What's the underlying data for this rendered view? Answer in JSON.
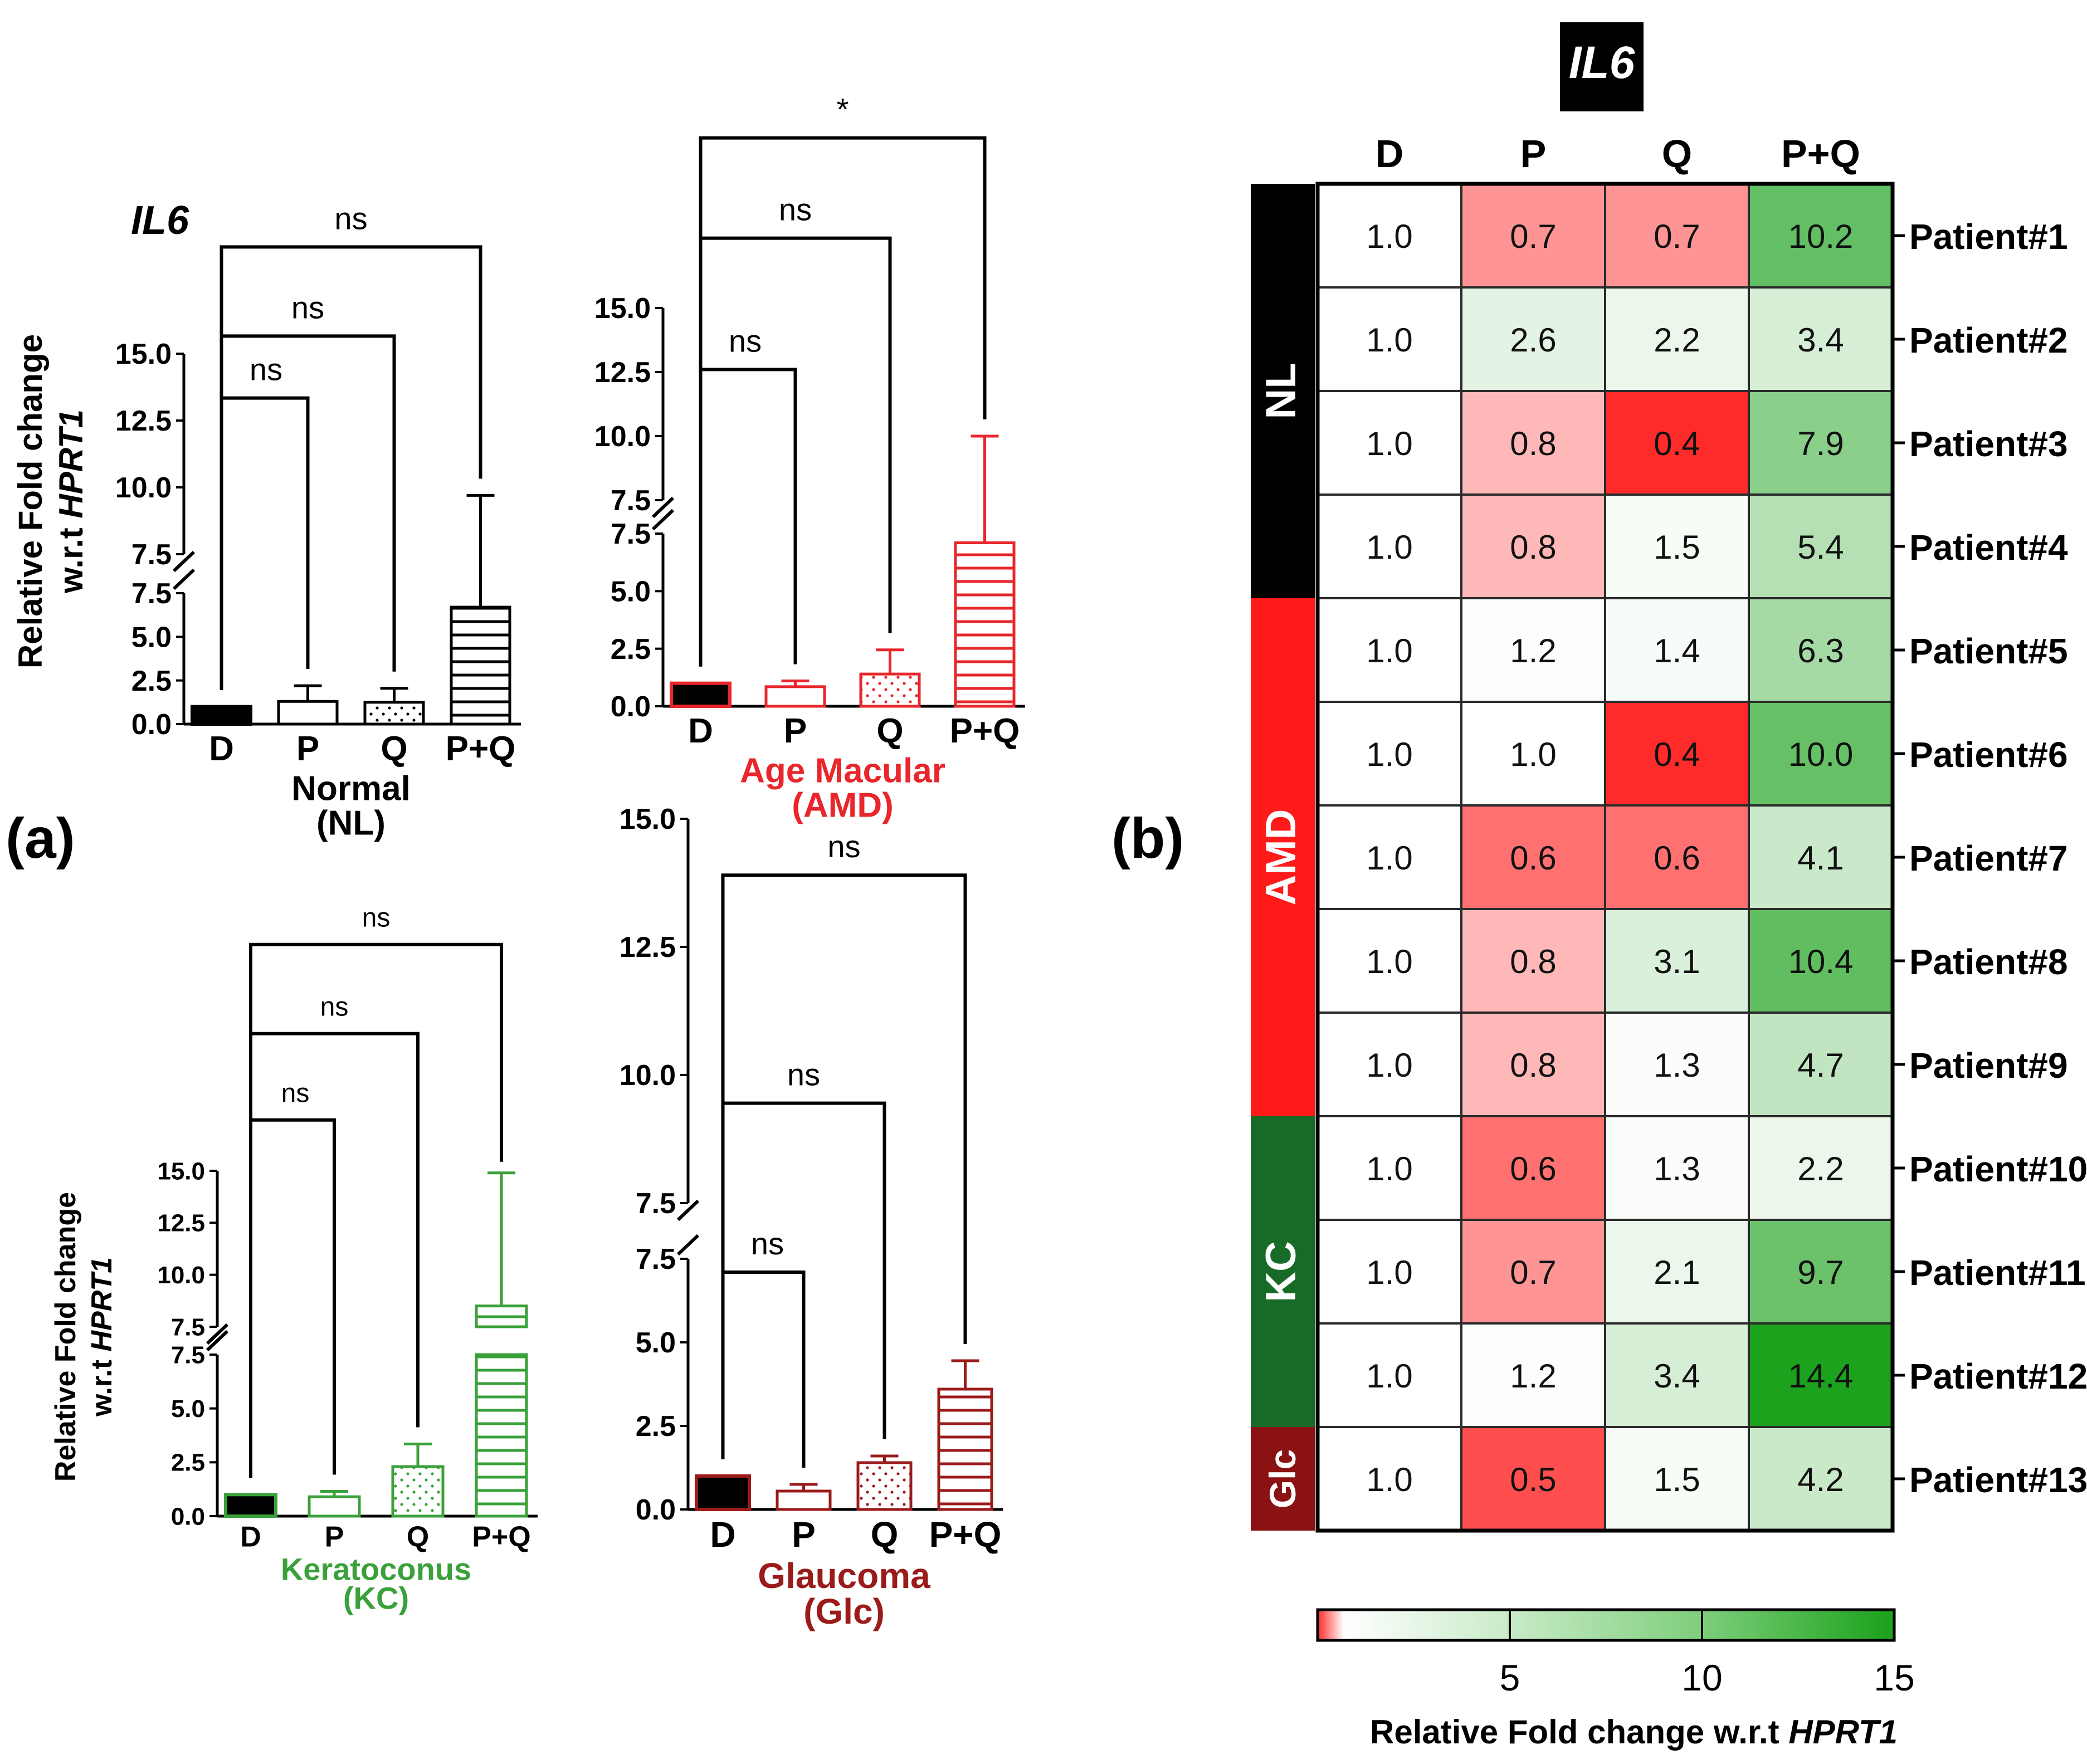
{
  "panel_labels": {
    "a": "(a)",
    "b": "(b)"
  },
  "axis_ylabel_line1": "Relative Fold change",
  "axis_ylabel_line2_prefix": "w.r.t ",
  "axis_ylabel_line2_gene": "HPRT1",
  "gene_label": "IL6",
  "chart_data": [
    {
      "type": "bar",
      "id": "NL",
      "title_line1": "Normal",
      "title_line2": "(NL)",
      "color": "#000000",
      "categories": [
        "D",
        "P",
        "Q",
        "P+Q"
      ],
      "values": [
        1.0,
        1.3,
        1.25,
        6.7
      ],
      "errors": [
        0,
        0.9,
        0.8,
        3.0
      ],
      "fills": [
        "solid",
        "none",
        "dots",
        "hlines"
      ],
      "y_ticks_lower": [
        "0.0",
        "2.5",
        "5.0",
        "7.5"
      ],
      "y_ticks_upper": [
        "7.5",
        "10.0",
        "12.5",
        "15.0"
      ],
      "ylim_lower": [
        0,
        7.5
      ],
      "ylim_upper": [
        7.5,
        15
      ],
      "comparisons": [
        {
          "from": "D",
          "to": "P",
          "label": "ns"
        },
        {
          "from": "D",
          "to": "Q",
          "label": "ns"
        },
        {
          "from": "D",
          "to": "P+Q",
          "label": "ns"
        }
      ]
    },
    {
      "type": "bar",
      "id": "AMD",
      "title_line1": "Age Macular",
      "title_line2": "(AMD)",
      "color": "#e8262b",
      "categories": [
        "D",
        "P",
        "Q",
        "P+Q"
      ],
      "values": [
        1.0,
        0.85,
        1.4,
        7.1
      ],
      "errors": [
        0,
        0.25,
        1.05,
        2.9
      ],
      "fills": [
        "solid",
        "none",
        "dots",
        "hlines"
      ],
      "y_ticks_lower": [
        "0.0",
        "2.5",
        "5.0",
        "7.5"
      ],
      "y_ticks_upper": [
        "7.5",
        "10.0",
        "12.5",
        "15.0"
      ],
      "ylim_lower": [
        0,
        7.5
      ],
      "ylim_upper": [
        7.5,
        15
      ],
      "comparisons": [
        {
          "from": "D",
          "to": "P",
          "label": "ns"
        },
        {
          "from": "D",
          "to": "Q",
          "label": "ns"
        },
        {
          "from": "D",
          "to": "P+Q",
          "label": "*"
        }
      ]
    },
    {
      "type": "bar",
      "id": "KC",
      "title_line1": "Keratoconus",
      "title_line2": "(KC)",
      "color": "#3aa13a",
      "categories": [
        "D",
        "P",
        "Q",
        "P+Q"
      ],
      "values": [
        1.0,
        0.9,
        2.3,
        8.5
      ],
      "errors": [
        0,
        0.25,
        1.05,
        6.4
      ],
      "fills": [
        "solid",
        "none",
        "dots",
        "hlines"
      ],
      "y_ticks_lower": [
        "0.0",
        "2.5",
        "5.0",
        "7.5"
      ],
      "y_ticks_upper": [
        "7.5",
        "10.0",
        "12.5",
        "15.0"
      ],
      "ylim_lower": [
        0,
        7.5
      ],
      "ylim_upper": [
        7.5,
        15
      ],
      "comparisons": [
        {
          "from": "D",
          "to": "P",
          "label": "ns"
        },
        {
          "from": "D",
          "to": "Q",
          "label": "ns"
        },
        {
          "from": "D",
          "to": "P+Q",
          "label": "ns"
        }
      ]
    },
    {
      "type": "bar",
      "id": "Glc",
      "title_line1": "Glaucoma",
      "title_line2": "(Glc)",
      "color": "#9b1b1b",
      "categories": [
        "D",
        "P",
        "Q",
        "P+Q"
      ],
      "values": [
        1.0,
        0.55,
        1.4,
        3.6
      ],
      "errors": [
        0,
        0.2,
        0.2,
        0.85
      ],
      "fills": [
        "solid",
        "none",
        "dots",
        "hlines"
      ],
      "y_ticks_lower": [
        "0.0",
        "2.5",
        "5.0",
        "7.5"
      ],
      "y_ticks_upper": [
        "7.5",
        "10.0",
        "12.5",
        "15.0"
      ],
      "ylim_lower": [
        0,
        7.5
      ],
      "ylim_upper": [
        7.5,
        15
      ],
      "comparisons": [
        {
          "from": "D",
          "to": "P",
          "label": "ns"
        },
        {
          "from": "D",
          "to": "Q",
          "label": "ns"
        },
        {
          "from": "D",
          "to": "P+Q",
          "label": "ns"
        }
      ]
    },
    {
      "type": "heatmap",
      "id": "heatmap",
      "title": "IL6",
      "columns": [
        "D",
        "P",
        "Q",
        "P+Q"
      ],
      "rows": [
        "Patient#1",
        "Patient#2",
        "Patient#3",
        "Patient#4",
        "Patient#5",
        "Patient#6",
        "Patient#7",
        "Patient#8",
        "Patient#9",
        "Patient#10",
        "Patient#11",
        "Patient#12",
        "Patient#13"
      ],
      "values": [
        [
          "1.0",
          "0.7",
          "0.7",
          "10.2"
        ],
        [
          "1.0",
          "2.6",
          "2.2",
          "3.4"
        ],
        [
          "1.0",
          "0.8",
          "0.4",
          "7.9"
        ],
        [
          "1.0",
          "0.8",
          "1.5",
          "5.4"
        ],
        [
          "1.0",
          "1.2",
          "1.4",
          "6.3"
        ],
        [
          "1.0",
          "1.0",
          "0.4",
          "10.0"
        ],
        [
          "1.0",
          "0.6",
          "0.6",
          "4.1"
        ],
        [
          "1.0",
          "0.8",
          "3.1",
          "10.4"
        ],
        [
          "1.0",
          "0.8",
          "1.3",
          "4.7"
        ],
        [
          "1.0",
          "0.6",
          "1.3",
          "2.2"
        ],
        [
          "1.0",
          "0.7",
          "2.1",
          "9.7"
        ],
        [
          "1.0",
          "1.2",
          "3.4",
          "14.4"
        ],
        [
          "1.0",
          "0.5",
          "1.5",
          "4.2"
        ]
      ],
      "groups": [
        {
          "label": "NL",
          "rows": 4,
          "color": "#000000"
        },
        {
          "label": "AMD",
          "rows": 5,
          "color": "#ff1a1a"
        },
        {
          "label": "KC",
          "rows": 3,
          "color": "#176b27"
        },
        {
          "label": "Glc",
          "rows": 1,
          "color": "#8b1212"
        }
      ],
      "colorbar": {
        "ticks": [
          "5",
          "10",
          "15"
        ],
        "range": [
          0,
          15
        ],
        "low_color": "#ff2a2a",
        "mid_color": "#ffffff",
        "high_color": "#1aa11a",
        "label_prefix": "Relative Fold change w.r.t ",
        "label_gene": "HPRT1"
      }
    }
  ]
}
